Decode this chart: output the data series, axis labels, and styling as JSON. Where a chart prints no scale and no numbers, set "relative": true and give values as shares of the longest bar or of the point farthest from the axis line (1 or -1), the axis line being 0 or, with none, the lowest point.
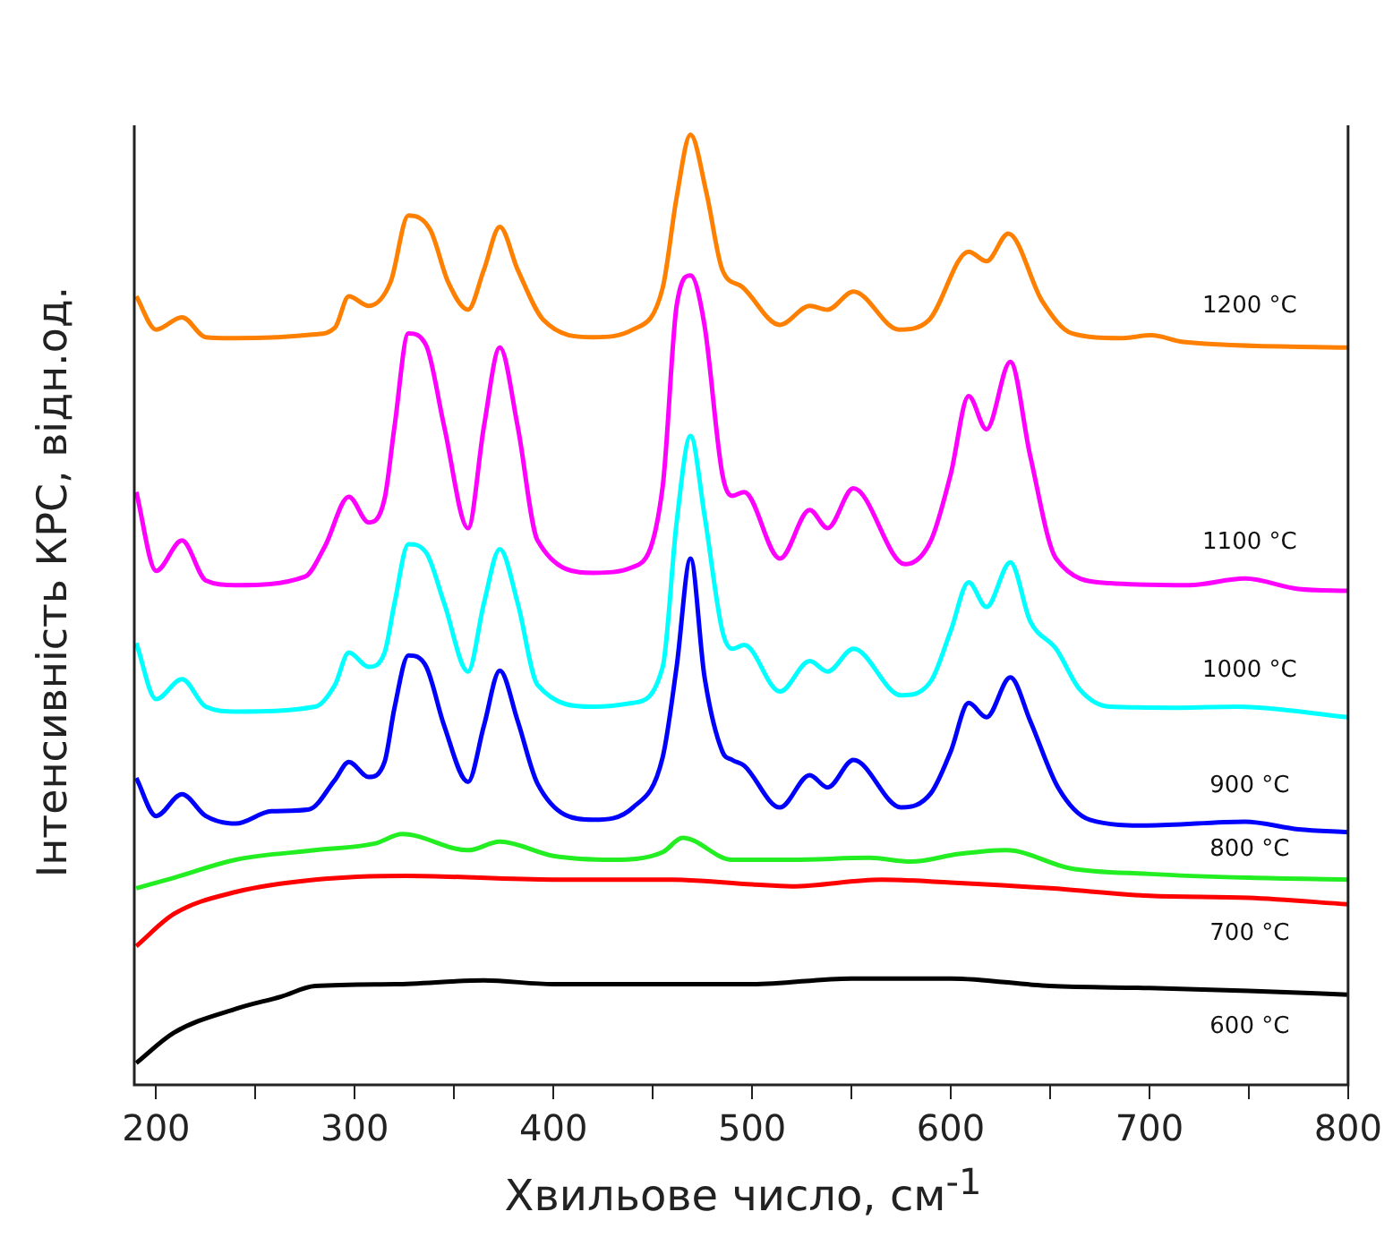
{
  "chart_data": {
    "type": "line",
    "xlabel": "Хвильове число, см$^{-1}$",
    "ylabel": "Інтенсивність КРС, відн.од.",
    "relative": true,
    "xlim": [
      189,
      800
    ],
    "xticks": [
      200,
      {
        "value": 250,
        "label": null
      },
      300,
      {
        "value": 350,
        "label": null
      },
      400,
      {
        "value": 450,
        "label": null
      },
      500,
      {
        "value": 550,
        "label": null
      },
      600,
      {
        "value": 650,
        "label": null
      },
      700,
      {
        "value": 750,
        "label": null
      },
      800
    ],
    "grid": false,
    "legend": false,
    "series": [
      {
        "name": "1200 °C",
        "color": "#ff8000",
        "x": [
          190,
          200,
          213,
          225,
          240,
          280,
          290,
          297,
          307,
          318,
          327,
          338,
          347,
          357,
          365,
          373,
          382,
          395,
          420,
          440,
          455,
          462,
          469,
          477,
          485,
          495,
          514,
          529,
          538,
          551,
          574,
          589,
          609,
          618,
          629,
          646,
          661,
          685,
          701,
          717,
          800
        ],
        "values": [
          0.83,
          0.795,
          0.808,
          0.787,
          0.786,
          0.79,
          0.797,
          0.83,
          0.82,
          0.845,
          0.915,
          0.9,
          0.845,
          0.816,
          0.858,
          0.903,
          0.858,
          0.805,
          0.787,
          0.795,
          0.839,
          0.934,
          1.0,
          0.939,
          0.858,
          0.84,
          0.8,
          0.82,
          0.816,
          0.835,
          0.795,
          0.805,
          0.877,
          0.867,
          0.896,
          0.825,
          0.791,
          0.786,
          0.789,
          0.782,
          0.776
        ]
      },
      {
        "name": "1100 °C",
        "color": "#ff00ff",
        "x": [
          190,
          200,
          213,
          225,
          240,
          275,
          285,
          297,
          307,
          315,
          320,
          327,
          336,
          345,
          357,
          365,
          373,
          382,
          392,
          420,
          440,
          455,
          462,
          469,
          476,
          485,
          490,
          496,
          514,
          529,
          538,
          551,
          577,
          590,
          600,
          609,
          618,
          630,
          640,
          653,
          680,
          720,
          748,
          775,
          800
        ],
        "values": [
          0.624,
          0.541,
          0.573,
          0.531,
          0.526,
          0.535,
          0.567,
          0.619,
          0.592,
          0.617,
          0.693,
          0.791,
          0.778,
          0.693,
          0.586,
          0.693,
          0.776,
          0.693,
          0.573,
          0.539,
          0.545,
          0.63,
          0.82,
          0.852,
          0.8,
          0.643,
          0.62,
          0.624,
          0.554,
          0.605,
          0.586,
          0.628,
          0.548,
          0.573,
          0.643,
          0.725,
          0.69,
          0.761,
          0.662,
          0.554,
          0.528,
          0.526,
          0.533,
          0.522,
          0.52
        ]
      },
      {
        "name": "1000 °C",
        "color": "#00ffff",
        "x": [
          190,
          200,
          213,
          225,
          240,
          280,
          290,
          297,
          307,
          315,
          320,
          327,
          336,
          345,
          357,
          365,
          373,
          382,
          392,
          420,
          440,
          455,
          462,
          469,
          476,
          485,
          490,
          496,
          514,
          529,
          538,
          551,
          575,
          590,
          600,
          609,
          618,
          630,
          640,
          653,
          665,
          680,
          715,
          744,
          800
        ],
        "values": [
          0.465,
          0.406,
          0.427,
          0.398,
          0.393,
          0.398,
          0.421,
          0.455,
          0.44,
          0.455,
          0.507,
          0.569,
          0.56,
          0.507,
          0.435,
          0.507,
          0.564,
          0.507,
          0.421,
          0.398,
          0.402,
          0.44,
          0.592,
          0.683,
          0.6,
          0.478,
          0.459,
          0.463,
          0.414,
          0.446,
          0.435,
          0.459,
          0.41,
          0.425,
          0.478,
          0.529,
          0.503,
          0.55,
          0.488,
          0.459,
          0.416,
          0.398,
          0.397,
          0.398,
          0.387
        ]
      },
      {
        "name": "900 °C",
        "color": "#0000ff",
        "x": [
          190,
          200,
          213,
          225,
          240,
          258,
          277,
          290,
          297,
          307,
          315,
          320,
          327,
          336,
          345,
          357,
          365,
          373,
          382,
          392,
          420,
          440,
          455,
          462,
          469,
          476,
          485,
          490,
          496,
          514,
          529,
          538,
          551,
          575,
          590,
          600,
          609,
          618,
          630,
          640,
          654,
          670,
          699,
          748,
          775,
          800
        ],
        "values": [
          0.323,
          0.283,
          0.306,
          0.283,
          0.275,
          0.288,
          0.29,
          0.321,
          0.34,
          0.324,
          0.34,
          0.397,
          0.452,
          0.44,
          0.378,
          0.319,
          0.378,
          0.436,
          0.383,
          0.317,
          0.279,
          0.292,
          0.345,
          0.44,
          0.554,
          0.43,
          0.351,
          0.342,
          0.336,
          0.292,
          0.326,
          0.313,
          0.342,
          0.292,
          0.307,
          0.351,
          0.402,
          0.387,
          0.429,
          0.383,
          0.313,
          0.279,
          0.273,
          0.277,
          0.269,
          0.266
        ]
      },
      {
        "name": "800 °C",
        "color": "#22ee22",
        "x": [
          190,
          209,
          240,
          280,
          310,
          324,
          357,
          373,
          400,
          430,
          455,
          465,
          490,
          520,
          559,
          580,
          604,
          628,
          660,
          700,
          750,
          800
        ],
        "values": [
          0.207,
          0.218,
          0.237,
          0.247,
          0.254,
          0.264,
          0.247,
          0.256,
          0.241,
          0.237,
          0.245,
          0.26,
          0.237,
          0.237,
          0.239,
          0.235,
          0.243,
          0.247,
          0.228,
          0.222,
          0.218,
          0.216
        ]
      },
      {
        "name": "700 °C",
        "color": "#ff0000",
        "x": [
          190,
          209,
          240,
          280,
          326,
          400,
          460,
          500,
          520,
          565,
          600,
          650,
          700,
          750,
          800
        ],
        "values": [
          0.146,
          0.18,
          0.203,
          0.216,
          0.22,
          0.216,
          0.216,
          0.211,
          0.209,
          0.216,
          0.213,
          0.207,
          0.199,
          0.197,
          0.19
        ]
      },
      {
        "name": "600 °C",
        "color": "#000000",
        "x": [
          190,
          209,
          240,
          263,
          280,
          320,
          365,
          400,
          500,
          550,
          600,
          650,
          700,
          750,
          800
        ],
        "values": [
          0.023,
          0.055,
          0.08,
          0.093,
          0.104,
          0.106,
          0.11,
          0.106,
          0.106,
          0.112,
          0.112,
          0.104,
          0.102,
          0.099,
          0.095
        ]
      }
    ]
  }
}
